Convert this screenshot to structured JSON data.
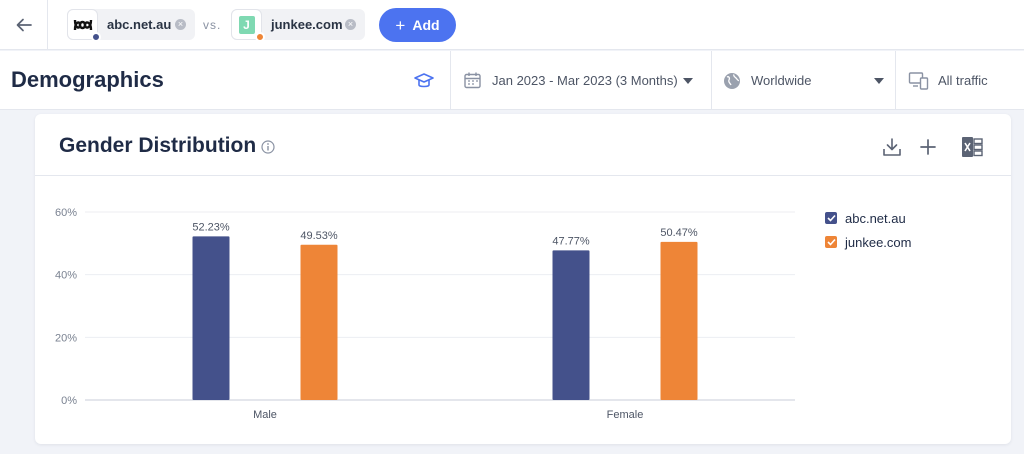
{
  "compare": {
    "sites": [
      {
        "name": "abc.net.au",
        "dot_color": "#44518b"
      },
      {
        "name": "junkee.com",
        "dot_color": "#ee8537",
        "favicon_letter": "J"
      }
    ],
    "vs_label": "vs.",
    "add_label": "Add"
  },
  "header": {
    "title": "Demographics",
    "date_range": "Jan 2023 - Mar 2023 (3 Months)",
    "region": "Worldwide",
    "traffic": "All traffic"
  },
  "card": {
    "title": "Gender Distribution"
  },
  "chart_data": {
    "type": "bar",
    "title": "",
    "xlabel": "",
    "ylabel": "",
    "categories": [
      "Male",
      "Female"
    ],
    "series": [
      {
        "name": "abc.net.au",
        "values": [
          52.23,
          47.77
        ],
        "labels": [
          "52.23%",
          "47.77%"
        ],
        "color": "#44518b"
      },
      {
        "name": "junkee.com",
        "values": [
          49.53,
          50.47
        ],
        "labels": [
          "49.53%",
          "50.47%"
        ],
        "color": "#ee8537"
      }
    ],
    "y_ticks": [
      0,
      20,
      40,
      60
    ],
    "y_tick_labels": [
      "0%",
      "20%",
      "40%",
      "60%"
    ],
    "ylim": [
      0,
      60
    ],
    "grid": true,
    "legend": "right"
  }
}
